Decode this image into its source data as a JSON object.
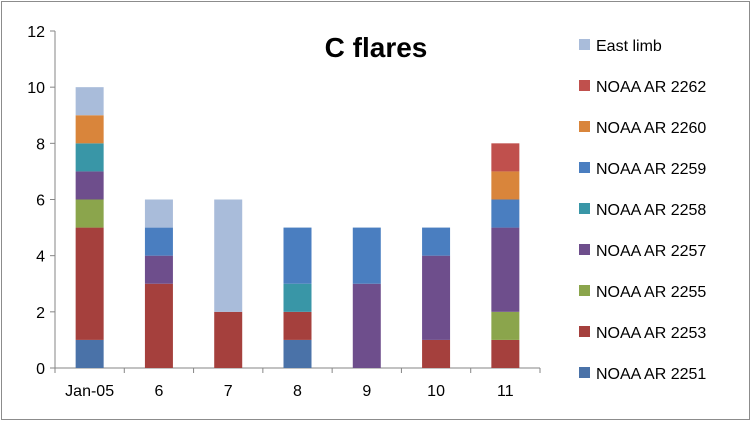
{
  "chart_data": {
    "type": "bar",
    "stacked": true,
    "title": "C flares",
    "xlabel": "",
    "ylabel": "",
    "ylim": [
      0,
      12
    ],
    "yticks": [
      0,
      2,
      4,
      6,
      8,
      10,
      12
    ],
    "categories": [
      "Jan-05",
      "6",
      "7",
      "8",
      "9",
      "10",
      "11"
    ],
    "grid": false,
    "legend_position": "right",
    "series": [
      {
        "name": "NOAA AR 2251",
        "color": "#4A72A8",
        "values": [
          1,
          0,
          0,
          1,
          0,
          0,
          0
        ]
      },
      {
        "name": "NOAA AR 2253",
        "color": "#A5403D",
        "values": [
          4,
          3,
          2,
          1,
          0,
          1,
          1
        ]
      },
      {
        "name": "NOAA AR 2255",
        "color": "#8BA54C",
        "values": [
          1,
          0,
          0,
          0,
          0,
          0,
          1
        ]
      },
      {
        "name": "NOAA AR 2257",
        "color": "#6E4E8C",
        "values": [
          1,
          1,
          0,
          0,
          3,
          3,
          3
        ]
      },
      {
        "name": "NOAA AR 2258",
        "color": "#3996A7",
        "values": [
          1,
          0,
          0,
          1,
          0,
          0,
          0
        ]
      },
      {
        "name": "NOAA AR 2259",
        "color": "#4A7EC0",
        "values": [
          0,
          1,
          0,
          2,
          2,
          1,
          1
        ]
      },
      {
        "name": "NOAA AR 2260",
        "color": "#D9853B",
        "values": [
          1,
          0,
          0,
          0,
          0,
          0,
          1
        ]
      },
      {
        "name": "NOAA AR 2262",
        "color": "#C0504D",
        "values": [
          0,
          0,
          0,
          0,
          0,
          0,
          1
        ]
      },
      {
        "name": "East limb",
        "color": "#A9BCDA",
        "values": [
          1,
          1,
          4,
          0,
          0,
          0,
          0
        ]
      }
    ]
  }
}
